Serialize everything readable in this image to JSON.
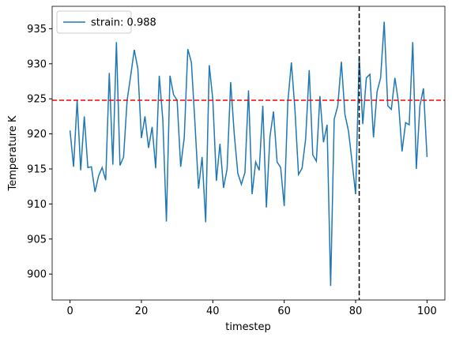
{
  "chart_data": {
    "type": "line",
    "x_label": "timestep",
    "y_label": "Temperature K",
    "x": [
      0,
      1,
      2,
      3,
      4,
      5,
      6,
      7,
      8,
      9,
      10,
      11,
      12,
      13,
      14,
      15,
      16,
      17,
      18,
      19,
      20,
      21,
      22,
      23,
      24,
      25,
      26,
      27,
      28,
      29,
      30,
      31,
      32,
      33,
      34,
      35,
      36,
      37,
      38,
      39,
      40,
      41,
      42,
      43,
      44,
      45,
      46,
      47,
      48,
      49,
      50,
      51,
      52,
      53,
      54,
      55,
      56,
      57,
      58,
      59,
      60,
      61,
      62,
      63,
      64,
      65,
      66,
      67,
      68,
      69,
      70,
      71,
      72,
      73,
      74,
      75,
      76,
      77,
      78,
      79,
      80,
      81,
      82,
      83,
      84,
      85,
      86,
      87,
      88,
      89,
      90,
      91,
      92,
      93,
      94,
      95,
      96,
      97,
      98,
      99,
      100
    ],
    "series": [
      {
        "name": "strain: 0.988",
        "color": "#1f77b4",
        "values": [
          920.5,
          915.3,
          924.8,
          914.8,
          922.5,
          915.2,
          915.3,
          911.7,
          914.0,
          915.2,
          913.4,
          928.7,
          915.6,
          933.1,
          915.5,
          916.7,
          924.8,
          928.3,
          932.0,
          929.3,
          919.4,
          922.5,
          918.0,
          921.0,
          915.1,
          928.3,
          922.0,
          907.5,
          928.3,
          925.6,
          924.8,
          915.3,
          919.5,
          932.1,
          930.2,
          921.5,
          912.2,
          916.7,
          907.4,
          929.8,
          924.9,
          913.3,
          918.6,
          912.3,
          915.0,
          927.4,
          920.0,
          914.4,
          912.8,
          914.5,
          926.2,
          911.4,
          916.0,
          914.8,
          924.0,
          909.5,
          919.6,
          923.2,
          916.0,
          915.2,
          909.7,
          924.5,
          930.2,
          923.5,
          914.2,
          915.1,
          919.3,
          929.1,
          917.0,
          916.1,
          925.4,
          918.8,
          921.3,
          898.3,
          922.1,
          924.0,
          930.3,
          922.8,
          920.4,
          916.0,
          911.4,
          931.0,
          921.4,
          928.0,
          928.5,
          919.5,
          926.0,
          928.0,
          936.0,
          924.0,
          923.5,
          928.0,
          924.5,
          917.5,
          921.6,
          921.3,
          933.1,
          915.0,
          924.0,
          926.5,
          916.7
        ]
      }
    ],
    "hline": {
      "value": 924.8,
      "color": "#ff0000"
    },
    "vline": {
      "value": 81,
      "color": "#000000"
    },
    "xlim": [
      -5,
      105
    ],
    "xticks": [
      0,
      20,
      40,
      60,
      80,
      100
    ],
    "ylim": [
      896.3,
      938.2
    ],
    "yticks": [
      900,
      905,
      910,
      915,
      920,
      925,
      930,
      935
    ],
    "legend": "upper left",
    "grid": false
  }
}
